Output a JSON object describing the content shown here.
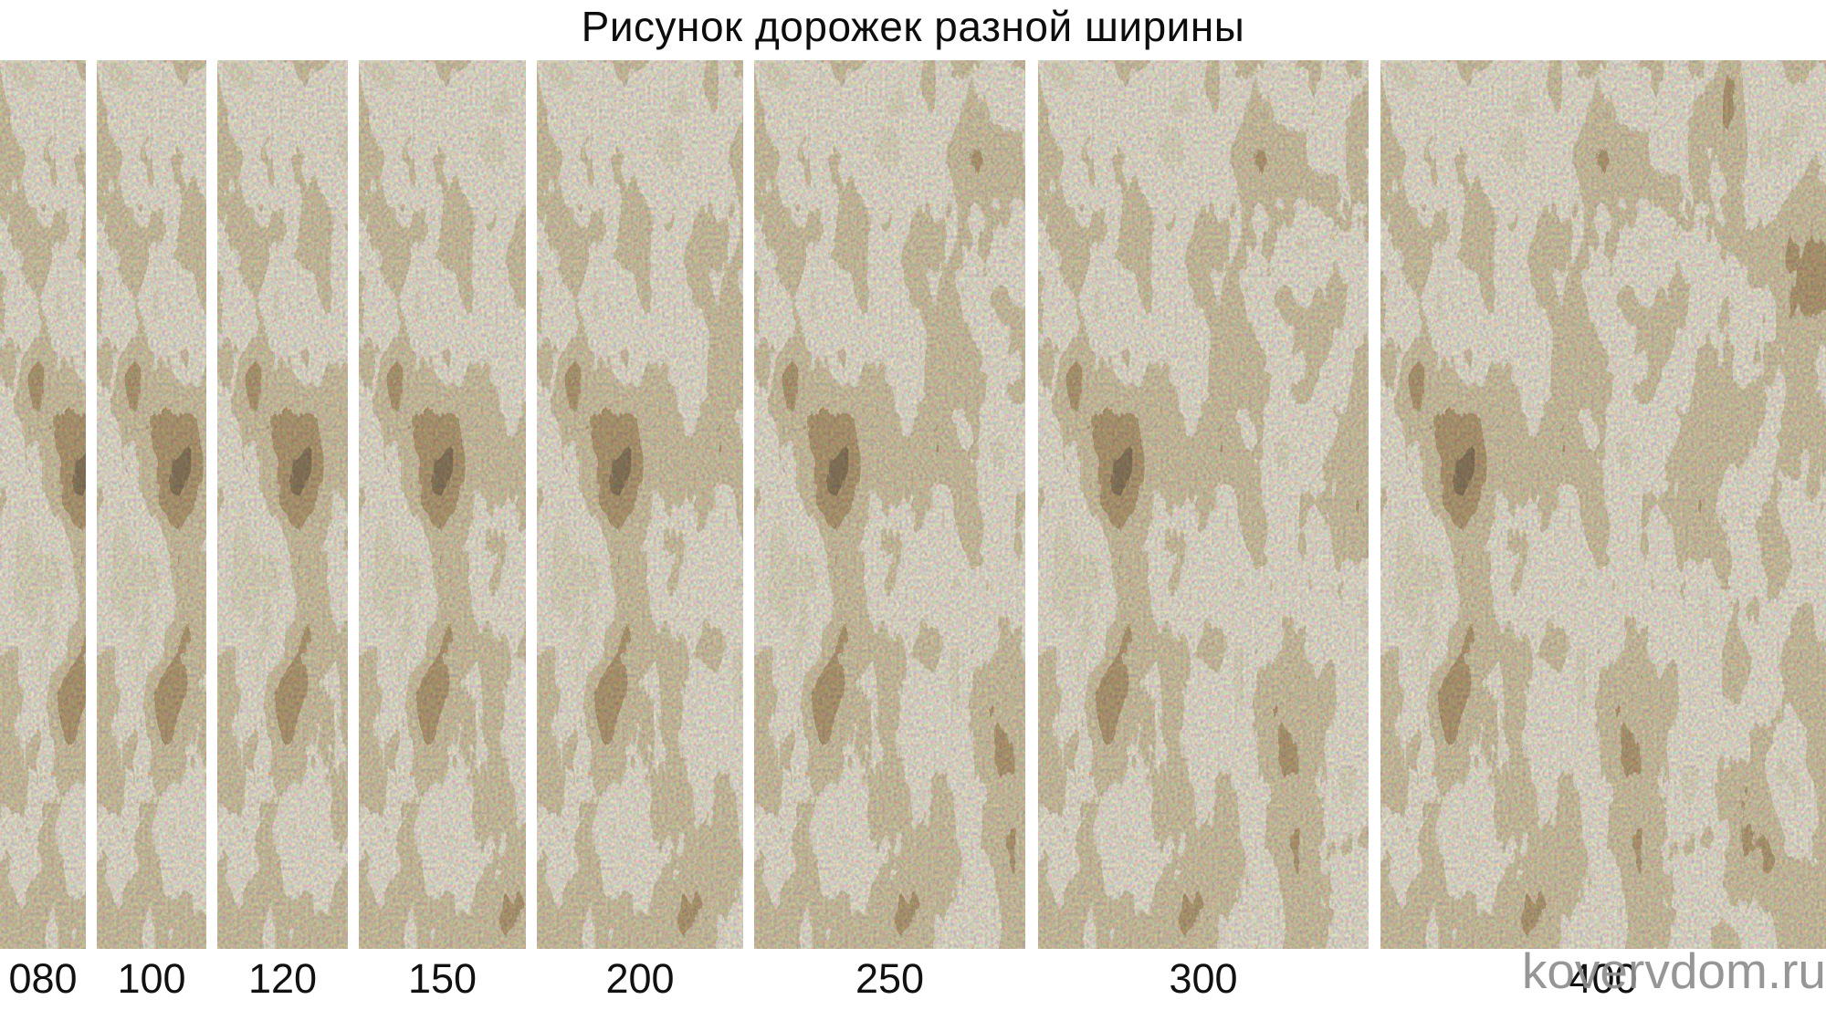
{
  "title": "Рисунок дорожек разной ширины",
  "strips": [
    {
      "label": "080",
      "width_cm": 80
    },
    {
      "label": "100",
      "width_cm": 100
    },
    {
      "label": "120",
      "width_cm": 120
    },
    {
      "label": "150",
      "width_cm": 150
    },
    {
      "label": "200",
      "width_cm": 200
    },
    {
      "label": "250",
      "width_cm": 250
    },
    {
      "label": "300",
      "width_cm": 300
    },
    {
      "label": "400",
      "width_cm": 400
    }
  ],
  "watermark": "kovervdom.ru",
  "colors": {
    "background": "#ffffff",
    "title_text": "#0d0d0d",
    "label_text": "#111111",
    "watermark_text": "#8e8e8e",
    "carpet_cream": "#ebe5d4",
    "carpet_beige": "#d6c9a8",
    "carpet_tan": "#b7a078",
    "carpet_brown": "#8d7c60",
    "carpet_dark": "#514b40"
  }
}
